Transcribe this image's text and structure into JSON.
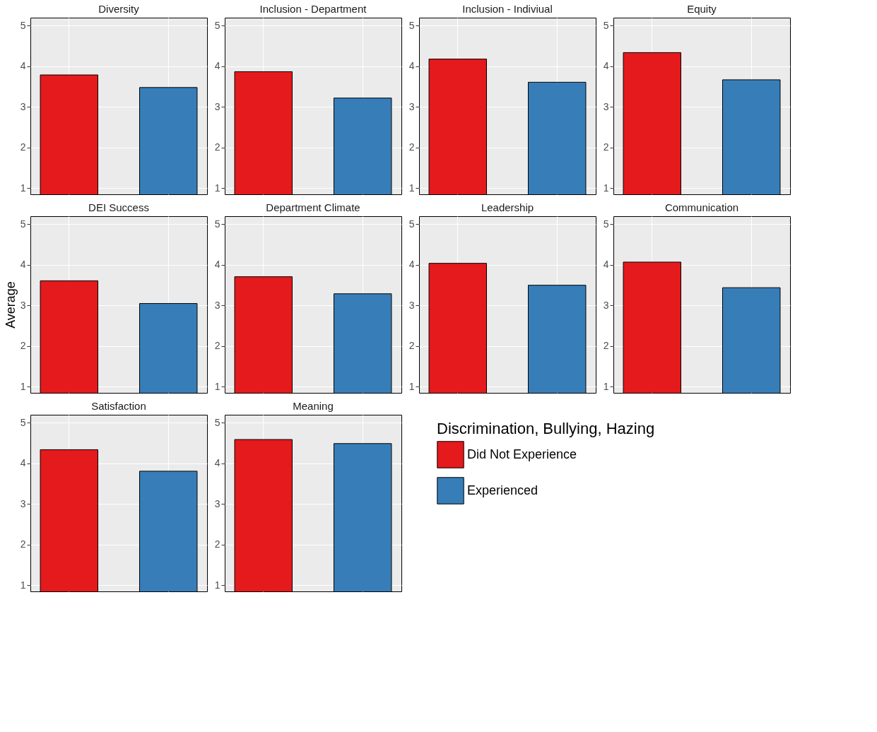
{
  "chart_data": [
    {
      "type": "bar",
      "title": "Diversity",
      "categories": [
        null,
        null
      ],
      "values": [
        3.79,
        3.48
      ],
      "colors": [
        "#e41a1c",
        "#377eb8"
      ],
      "ylim": [
        0.85,
        5.2
      ],
      "yticks": [
        1,
        2,
        3,
        4,
        5
      ],
      "grid": true,
      "tick_labels": "y"
    },
    {
      "type": "bar",
      "title": "Inclusion - Department",
      "categories": [
        null,
        null
      ],
      "values": [
        3.87,
        3.22
      ],
      "colors": [
        "#e41a1c",
        "#377eb8"
      ],
      "ylim": [
        0.85,
        5.2
      ],
      "yticks": [
        1,
        2,
        3,
        4,
        5
      ],
      "grid": true,
      "tick_labels": "y"
    },
    {
      "type": "bar",
      "title": "Inclusion - Indiviual",
      "categories": [
        null,
        null
      ],
      "values": [
        4.18,
        3.61
      ],
      "colors": [
        "#e41a1c",
        "#377eb8"
      ],
      "ylim": [
        0.85,
        5.2
      ],
      "yticks": [
        1,
        2,
        3,
        4,
        5
      ],
      "grid": true,
      "tick_labels": "y"
    },
    {
      "type": "bar",
      "title": "Equity",
      "categories": [
        null,
        null
      ],
      "values": [
        4.34,
        3.67
      ],
      "colors": [
        "#e41a1c",
        "#377eb8"
      ],
      "ylim": [
        0.85,
        5.2
      ],
      "yticks": [
        1,
        2,
        3,
        4,
        5
      ],
      "grid": true,
      "tick_labels": "y"
    },
    {
      "type": "bar",
      "title": "DEI Success",
      "ylabel": "Average",
      "categories": [
        null,
        null
      ],
      "values": [
        3.61,
        3.05
      ],
      "colors": [
        "#e41a1c",
        "#377eb8"
      ],
      "ylim": [
        0.85,
        5.2
      ],
      "yticks": [
        1,
        2,
        3,
        4,
        5
      ],
      "grid": true,
      "tick_labels": "y"
    },
    {
      "type": "bar",
      "title": "Department Climate",
      "categories": [
        null,
        null
      ],
      "values": [
        3.71,
        3.29
      ],
      "colors": [
        "#e41a1c",
        "#377eb8"
      ],
      "ylim": [
        0.85,
        5.2
      ],
      "yticks": [
        1,
        2,
        3,
        4,
        5
      ],
      "grid": true,
      "tick_labels": "y"
    },
    {
      "type": "bar",
      "title": "Leadership",
      "categories": [
        null,
        null
      ],
      "values": [
        4.04,
        3.5
      ],
      "colors": [
        "#e41a1c",
        "#377eb8"
      ],
      "ylim": [
        0.85,
        5.2
      ],
      "yticks": [
        1,
        2,
        3,
        4,
        5
      ],
      "grid": true,
      "tick_labels": "y"
    },
    {
      "type": "bar",
      "title": "Communication",
      "categories": [
        null,
        null
      ],
      "values": [
        4.07,
        3.44
      ],
      "colors": [
        "#e41a1c",
        "#377eb8"
      ],
      "ylim": [
        0.85,
        5.2
      ],
      "yticks": [
        1,
        2,
        3,
        4,
        5
      ],
      "grid": true,
      "tick_labels": "y"
    },
    {
      "type": "bar",
      "title": "Satisfaction",
      "categories": [
        null,
        null
      ],
      "values": [
        4.34,
        3.81
      ],
      "colors": [
        "#e41a1c",
        "#377eb8"
      ],
      "ylim": [
        0.85,
        5.2
      ],
      "yticks": [
        1,
        2,
        3,
        4,
        5
      ],
      "grid": true,
      "tick_labels": "y"
    },
    {
      "type": "bar",
      "title": "Meaning",
      "legend_title": "Discrimination, Bullying, Hazing",
      "categories": [
        null,
        null
      ],
      "stacked": true,
      "series": [
        {
          "name": "Did Not Experience",
          "color": "#e41a1c",
          "values": [
            4.59,
            null
          ]
        },
        {
          "name": "Experienced",
          "color": "#377eb8",
          "values": [
            null,
            4.49
          ]
        }
      ],
      "ylim": [
        0.85,
        5.2
      ],
      "yticks": [
        1,
        2,
        3,
        4,
        5
      ],
      "grid": true,
      "tick_labels": "y",
      "legend": "right"
    }
  ]
}
